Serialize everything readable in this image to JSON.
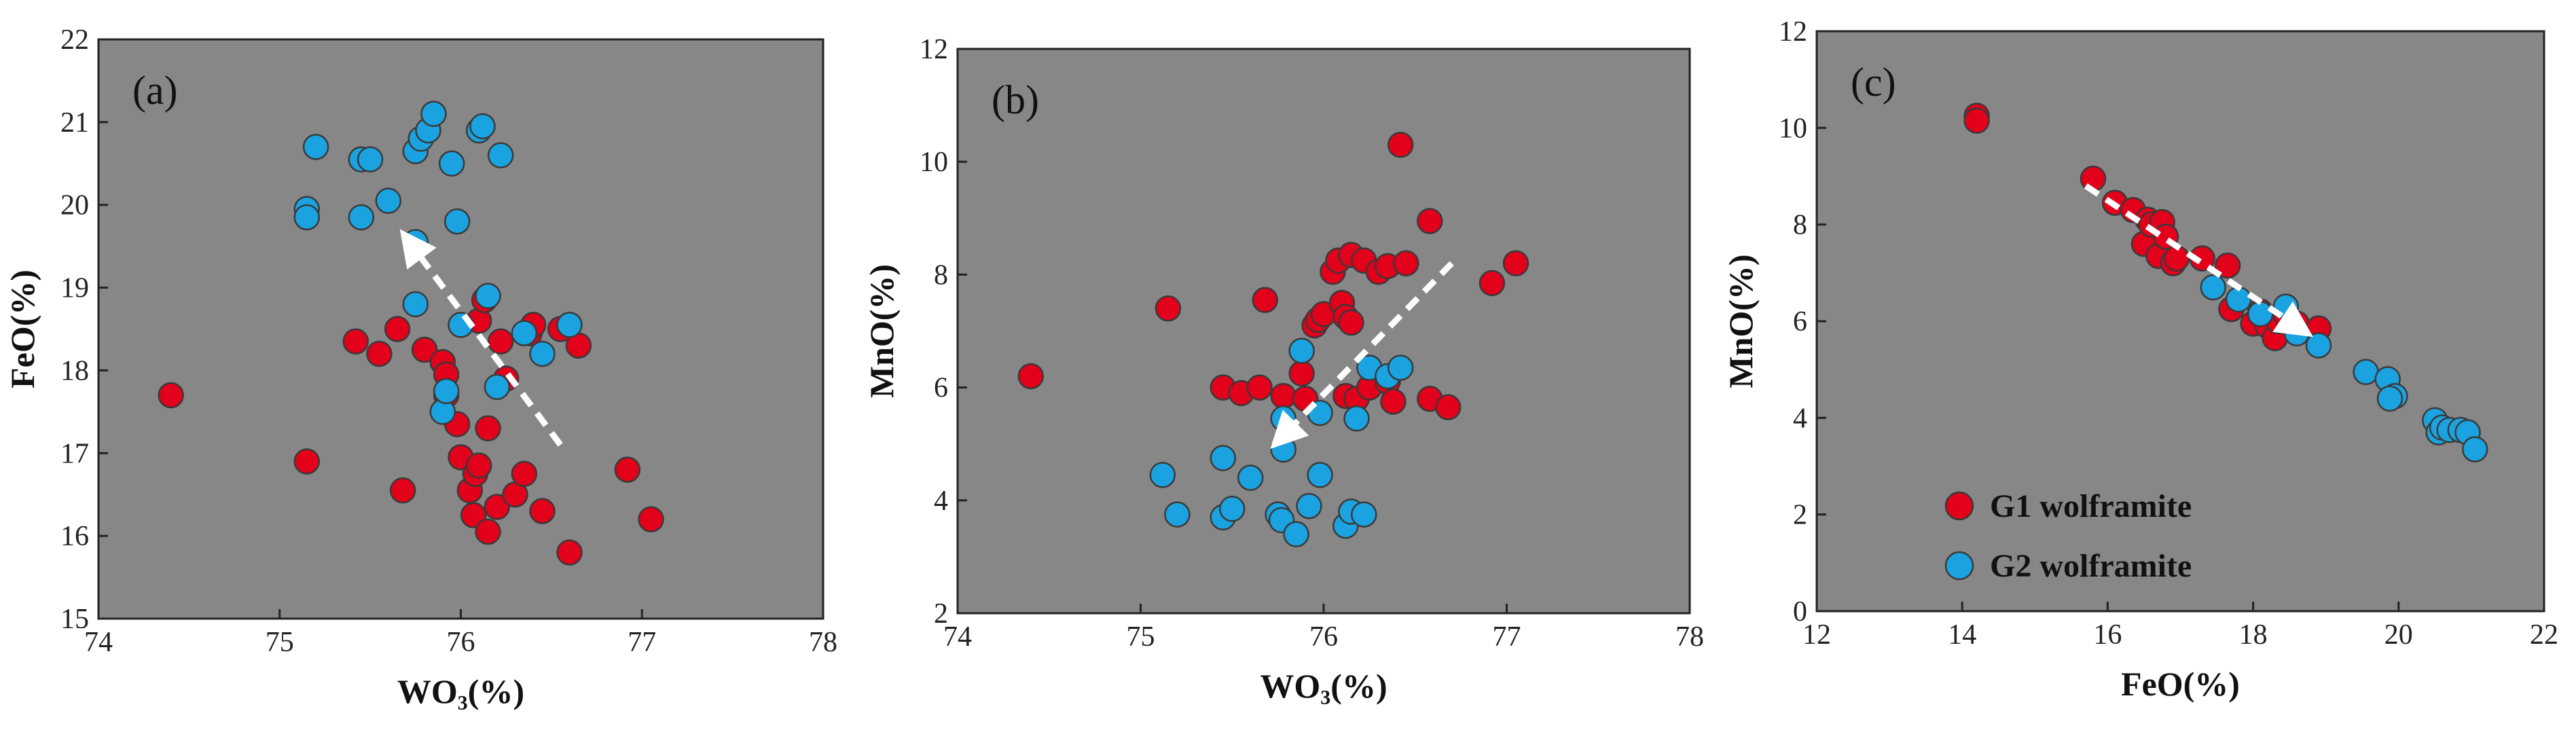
{
  "colors": {
    "G1": "#e3001b",
    "G2": "#1aa3e0",
    "marker_edge": "#3a3a3a",
    "plot_bg": "#878787",
    "arrow": "#ffffff"
  },
  "chart_data": [
    {
      "type": "scatter",
      "panel_label": "(a)",
      "xlabel": "WO₃(%)",
      "ylabel": "FeO(%)",
      "xlim": [
        74,
        78
      ],
      "ylim": [
        15,
        22
      ],
      "xticks": [
        74,
        75,
        76,
        77,
        78
      ],
      "yticks": [
        15,
        16,
        17,
        18,
        19,
        20,
        21,
        22
      ],
      "grid": false,
      "arrow": {
        "from": [
          76.55,
          17.1
        ],
        "to": [
          75.7,
          19.6
        ]
      },
      "series": [
        {
          "key": "G1",
          "points": [
            [
              74.4,
              17.7
            ],
            [
              75.15,
              16.9
            ],
            [
              75.42,
              18.35
            ],
            [
              75.55,
              18.2
            ],
            [
              75.65,
              18.5
            ],
            [
              75.68,
              16.55
            ],
            [
              75.8,
              18.25
            ],
            [
              75.9,
              18.1
            ],
            [
              75.92,
              17.95
            ],
            [
              75.92,
              17.7
            ],
            [
              75.98,
              17.35
            ],
            [
              76.0,
              16.95
            ],
            [
              76.05,
              16.55
            ],
            [
              76.07,
              16.25
            ],
            [
              76.08,
              16.75
            ],
            [
              76.1,
              16.85
            ],
            [
              76.1,
              18.6
            ],
            [
              76.13,
              18.85
            ],
            [
              76.15,
              17.3
            ],
            [
              76.15,
              16.05
            ],
            [
              76.2,
              16.35
            ],
            [
              76.22,
              18.35
            ],
            [
              76.25,
              17.9
            ],
            [
              76.3,
              16.5
            ],
            [
              76.35,
              16.75
            ],
            [
              76.38,
              18.45
            ],
            [
              76.4,
              18.55
            ],
            [
              76.45,
              16.3
            ],
            [
              76.55,
              18.5
            ],
            [
              76.6,
              15.8
            ],
            [
              76.65,
              18.3
            ],
            [
              76.92,
              16.8
            ],
            [
              77.05,
              16.2
            ]
          ]
        },
        {
          "key": "G2",
          "points": [
            [
              75.15,
              19.95
            ],
            [
              75.15,
              19.85
            ],
            [
              75.2,
              20.7
            ],
            [
              75.45,
              20.55
            ],
            [
              75.45,
              19.85
            ],
            [
              75.5,
              20.55
            ],
            [
              75.6,
              20.05
            ],
            [
              75.75,
              20.65
            ],
            [
              75.78,
              20.8
            ],
            [
              75.82,
              20.9
            ],
            [
              75.85,
              21.1
            ],
            [
              75.75,
              19.55
            ],
            [
              75.75,
              18.8
            ],
            [
              75.9,
              17.5
            ],
            [
              75.92,
              17.75
            ],
            [
              75.95,
              20.5
            ],
            [
              75.98,
              19.8
            ],
            [
              76.0,
              18.55
            ],
            [
              76.1,
              20.9
            ],
            [
              76.12,
              20.95
            ],
            [
              76.15,
              18.9
            ],
            [
              76.2,
              17.8
            ],
            [
              76.22,
              20.6
            ],
            [
              76.35,
              18.45
            ],
            [
              76.45,
              18.2
            ],
            [
              76.6,
              18.55
            ]
          ]
        }
      ]
    },
    {
      "type": "scatter",
      "panel_label": "(b)",
      "xlabel": "WO₃(%)",
      "ylabel": "MnO(%)",
      "xlim": [
        74,
        78
      ],
      "ylim": [
        2,
        12
      ],
      "xticks": [
        74,
        75,
        76,
        77,
        78
      ],
      "yticks": [
        2,
        4,
        6,
        8,
        10,
        12
      ],
      "grid": false,
      "arrow": {
        "from": [
          76.7,
          8.2
        ],
        "to": [
          75.75,
          5.05
        ]
      },
      "series": [
        {
          "key": "G1",
          "points": [
            [
              74.4,
              6.2
            ],
            [
              75.15,
              7.4
            ],
            [
              75.45,
              6.0
            ],
            [
              75.55,
              5.9
            ],
            [
              75.65,
              6.0
            ],
            [
              75.68,
              7.55
            ],
            [
              75.78,
              5.85
            ],
            [
              75.88,
              6.25
            ],
            [
              75.9,
              5.8
            ],
            [
              75.95,
              7.1
            ],
            [
              75.97,
              7.2
            ],
            [
              76.0,
              7.3
            ],
            [
              76.05,
              8.05
            ],
            [
              76.08,
              8.25
            ],
            [
              76.1,
              7.5
            ],
            [
              76.12,
              7.25
            ],
            [
              76.12,
              5.85
            ],
            [
              76.15,
              8.35
            ],
            [
              76.15,
              7.15
            ],
            [
              76.18,
              5.8
            ],
            [
              76.22,
              8.25
            ],
            [
              76.25,
              6.0
            ],
            [
              76.3,
              8.05
            ],
            [
              76.35,
              8.15
            ],
            [
              76.35,
              6.1
            ],
            [
              76.38,
              5.75
            ],
            [
              76.42,
              10.3
            ],
            [
              76.45,
              8.2
            ],
            [
              76.58,
              8.95
            ],
            [
              76.58,
              5.8
            ],
            [
              76.68,
              5.65
            ],
            [
              76.92,
              7.85
            ],
            [
              77.05,
              8.2
            ]
          ]
        },
        {
          "key": "G2",
          "points": [
            [
              75.12,
              4.45
            ],
            [
              75.2,
              3.75
            ],
            [
              75.45,
              4.75
            ],
            [
              75.45,
              3.7
            ],
            [
              75.5,
              3.85
            ],
            [
              75.6,
              4.4
            ],
            [
              75.75,
              3.75
            ],
            [
              75.77,
              3.65
            ],
            [
              75.78,
              4.9
            ],
            [
              75.78,
              5.45
            ],
            [
              75.85,
              3.4
            ],
            [
              75.88,
              6.65
            ],
            [
              75.92,
              3.9
            ],
            [
              75.98,
              4.45
            ],
            [
              75.98,
              5.55
            ],
            [
              76.12,
              3.55
            ],
            [
              76.15,
              3.8
            ],
            [
              76.18,
              5.45
            ],
            [
              76.22,
              3.75
            ],
            [
              76.25,
              6.35
            ],
            [
              76.35,
              6.2
            ],
            [
              76.42,
              6.35
            ]
          ]
        }
      ]
    },
    {
      "type": "scatter",
      "panel_label": "(c)",
      "xlabel": "FeO(%)",
      "ylabel": "MnO(%)",
      "xlim": [
        12,
        22
      ],
      "ylim": [
        0,
        12
      ],
      "xticks": [
        12,
        14,
        16,
        18,
        20,
        22
      ],
      "yticks": [
        0,
        2,
        4,
        6,
        8,
        10,
        12
      ],
      "grid": false,
      "arrow": {
        "from": [
          15.7,
          8.8
        ],
        "to": [
          18.7,
          5.8
        ]
      },
      "legend": {
        "placement": "bottom-left",
        "entries": [
          {
            "key": "G1",
            "label": "G1 wolframite"
          },
          {
            "key": "G2",
            "label": "G2 wolframite"
          }
        ]
      },
      "series": [
        {
          "key": "G1",
          "points": [
            [
              14.2,
              10.25
            ],
            [
              14.2,
              10.15
            ],
            [
              15.8,
              8.95
            ],
            [
              16.1,
              8.45
            ],
            [
              16.35,
              8.3
            ],
            [
              16.5,
              7.6
            ],
            [
              16.55,
              8.1
            ],
            [
              16.6,
              8.0
            ],
            [
              16.7,
              7.35
            ],
            [
              16.75,
              8.05
            ],
            [
              16.8,
              7.75
            ],
            [
              16.9,
              7.2
            ],
            [
              16.95,
              7.3
            ],
            [
              17.3,
              7.3
            ],
            [
              17.65,
              7.15
            ],
            [
              17.7,
              6.25
            ],
            [
              18.0,
              5.95
            ],
            [
              18.1,
              6.2
            ],
            [
              18.2,
              5.9
            ],
            [
              18.3,
              5.65
            ],
            [
              18.35,
              6.0
            ],
            [
              18.45,
              6.15
            ],
            [
              18.6,
              5.95
            ],
            [
              18.9,
              5.85
            ]
          ]
        },
        {
          "key": "G2",
          "points": [
            [
              17.45,
              6.7
            ],
            [
              17.8,
              6.45
            ],
            [
              18.1,
              6.15
            ],
            [
              18.45,
              6.3
            ],
            [
              18.6,
              5.75
            ],
            [
              18.9,
              5.5
            ],
            [
              19.55,
              4.95
            ],
            [
              19.85,
              4.8
            ],
            [
              19.95,
              4.45
            ],
            [
              19.88,
              4.4
            ],
            [
              20.5,
              3.95
            ],
            [
              20.55,
              3.7
            ],
            [
              20.6,
              3.8
            ],
            [
              20.7,
              3.75
            ],
            [
              20.85,
              3.75
            ],
            [
              20.95,
              3.7
            ],
            [
              21.05,
              3.35
            ]
          ]
        }
      ]
    }
  ]
}
